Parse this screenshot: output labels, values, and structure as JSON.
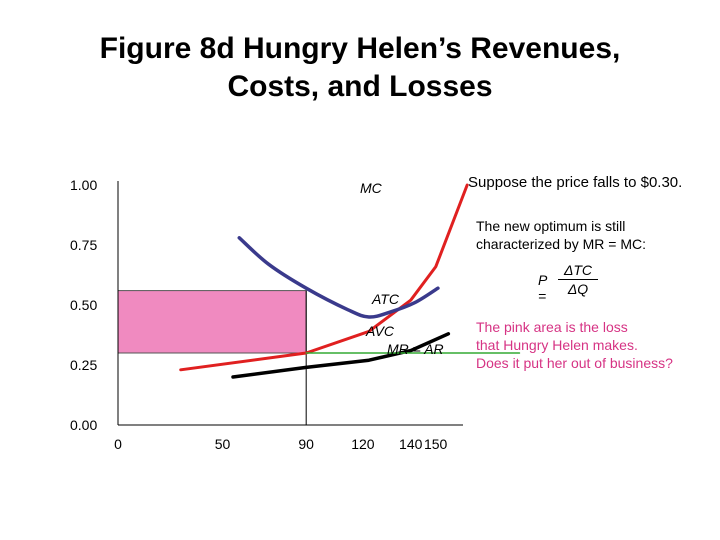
{
  "title": {
    "line1": "Figure 8d Hungry Helen’s Revenues,",
    "line2": "Costs, and Losses"
  },
  "side_text": {
    "price_falls": "Suppose the price falls to $0.30.",
    "optimum_line1": "The new optimum is still",
    "optimum_line2": "characterized by MR = MC:",
    "loss_line1": "The pink area is the loss",
    "loss_line2": "that Hungry Helen makes.",
    "loss_line3": "Does it put her out of business?",
    "loss_color": "#d63384"
  },
  "formula": {
    "lhs": "P =",
    "numerator": "ΔTC",
    "denominator": "ΔQ"
  },
  "chart_data": {
    "type": "line",
    "xlim": [
      0,
      165
    ],
    "ylim": [
      0,
      1.0
    ],
    "x_ticks": [
      0,
      50,
      90,
      120,
      140,
      150
    ],
    "y_ticks": [
      {
        "value": 1.0,
        "label": "1.00"
      },
      {
        "value": 0.75,
        "label": "0.75"
      },
      {
        "value": 0.5,
        "label": "0.50"
      },
      {
        "value": 0.25,
        "label": "0.25"
      },
      {
        "value": 0.0,
        "label": "0.00"
      }
    ],
    "series": [
      {
        "name": "MC",
        "color": "#e02020",
        "points": [
          [
            30,
            0.23
          ],
          [
            90,
            0.3
          ],
          [
            120,
            0.39
          ],
          [
            140,
            0.52
          ],
          [
            152,
            0.66
          ],
          [
            167,
            1.0
          ]
        ]
      },
      {
        "name": "ATC",
        "color": "#3a3a8c",
        "points": [
          [
            58,
            0.78
          ],
          [
            72,
            0.67
          ],
          [
            90,
            0.57
          ],
          [
            110,
            0.48
          ],
          [
            120,
            0.45
          ],
          [
            130,
            0.47
          ],
          [
            142,
            0.51
          ],
          [
            153,
            0.57
          ]
        ]
      },
      {
        "name": "AVC",
        "color": "#000000",
        "points": [
          [
            55,
            0.2
          ],
          [
            90,
            0.24
          ],
          [
            120,
            0.27
          ],
          [
            140,
            0.31
          ],
          [
            158,
            0.38
          ]
        ]
      },
      {
        "name": "MR = AR",
        "color": "#33aa33",
        "points": [
          [
            90,
            0.3
          ],
          [
            192,
            0.3
          ]
        ]
      }
    ],
    "loss_area": {
      "x0": 0,
      "x1": 90,
      "y0": 0.3,
      "y1": 0.56,
      "color": "#f08ac0"
    },
    "guide_x": 90,
    "labels": {
      "mc": "MC",
      "atc": "ATC",
      "avc": "AVC",
      "mr": "MR = AR"
    }
  }
}
